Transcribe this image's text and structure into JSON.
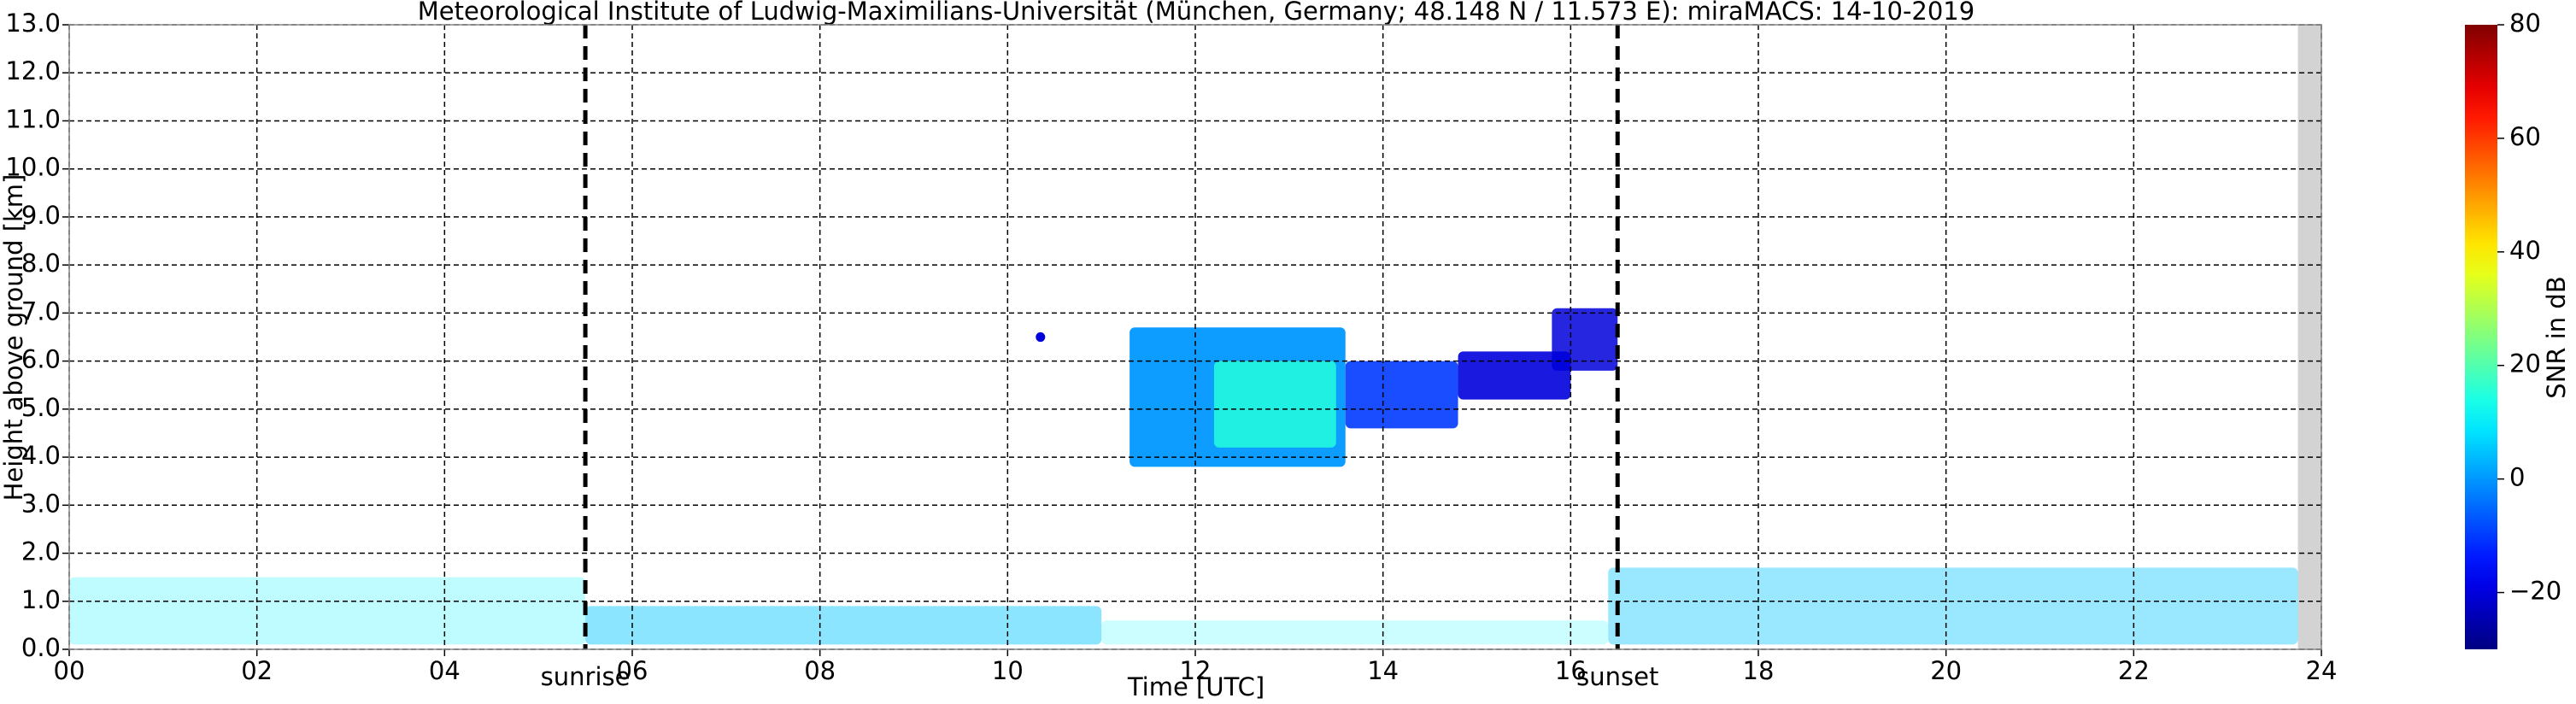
{
  "chart_data": {
    "type": "time-height",
    "title": "Meteorological Institute of Ludwig-Maximilians-Universität (München, Germany; 48.148 N / 11.573 E):    miraMACS: 14-10-2019",
    "x_label": "Time [UTC]",
    "y_label": "Height above ground [km]",
    "xlim": [
      0,
      24
    ],
    "ylim": [
      0,
      13
    ],
    "xticks": [
      {
        "value": 0,
        "label": "00"
      },
      {
        "value": 2,
        "label": "02"
      },
      {
        "value": 4,
        "label": "04"
      },
      {
        "value": 6,
        "label": "06"
      },
      {
        "value": 8,
        "label": "08"
      },
      {
        "value": 10,
        "label": "10"
      },
      {
        "value": 12,
        "label": "12"
      },
      {
        "value": 14,
        "label": "14"
      },
      {
        "value": 16,
        "label": "16"
      },
      {
        "value": 18,
        "label": "18"
      },
      {
        "value": 20,
        "label": "20"
      },
      {
        "value": 22,
        "label": "22"
      },
      {
        "value": 24,
        "label": "24"
      }
    ],
    "yticks": [
      {
        "value": 0,
        "label": "0.0"
      },
      {
        "value": 1,
        "label": "1.0"
      },
      {
        "value": 2,
        "label": "2.0"
      },
      {
        "value": 3,
        "label": "3.0"
      },
      {
        "value": 4,
        "label": "4.0"
      },
      {
        "value": 5,
        "label": "5.0"
      },
      {
        "value": 6,
        "label": "6.0"
      },
      {
        "value": 7,
        "label": "7.0"
      },
      {
        "value": 8,
        "label": "8.0"
      },
      {
        "value": 9,
        "label": "9.0"
      },
      {
        "value": 10,
        "label": "10.0"
      },
      {
        "value": 11,
        "label": "11.0"
      },
      {
        "value": 12,
        "label": "12.0"
      },
      {
        "value": 13,
        "label": "13.0"
      }
    ],
    "grid": true,
    "no_data_from": 23.75,
    "events": [
      {
        "label": "sunrise",
        "x": 5.5
      },
      {
        "label": "sunset",
        "x": 16.5
      }
    ],
    "colorbar": {
      "label": "SNR in dB",
      "colormap": "jet",
      "lim": [
        -30,
        80
      ],
      "ticks": [
        {
          "value": -20,
          "label": "−20"
        },
        0,
        20,
        40,
        60,
        80
      ]
    },
    "echoes": [
      {
        "x": [
          0,
          5.5
        ],
        "y": [
          0.1,
          1.5
        ],
        "snr": 10,
        "coverage": 0.25
      },
      {
        "x": [
          5.5,
          11
        ],
        "y": [
          0.1,
          0.9
        ],
        "snr": 5,
        "coverage": 0.45
      },
      {
        "x": [
          11,
          16.4
        ],
        "y": [
          0.1,
          0.6
        ],
        "snr": 10,
        "coverage": 0.2
      },
      {
        "x": [
          16.4,
          23.75
        ],
        "y": [
          0.1,
          1.7
        ],
        "snr": 5,
        "coverage": 0.4
      },
      {
        "x": [
          11.3,
          13.6
        ],
        "y": [
          3.8,
          6.7
        ],
        "snr": 0,
        "coverage": 0.95
      },
      {
        "x": [
          12.2,
          13.5
        ],
        "y": [
          4.2,
          6.0
        ],
        "snr": 15,
        "coverage": 0.85
      },
      {
        "x": [
          13.6,
          14.8
        ],
        "y": [
          4.6,
          6.0
        ],
        "snr": -10,
        "coverage": 0.9
      },
      {
        "x": [
          14.8,
          16.0
        ],
        "y": [
          5.2,
          6.2
        ],
        "snr": -20,
        "coverage": 0.9
      },
      {
        "x": [
          15.8,
          16.5
        ],
        "y": [
          5.8,
          7.1
        ],
        "snr": -20,
        "coverage": 0.85
      },
      {
        "x": [
          10.3,
          10.4
        ],
        "y": [
          6.4,
          6.6
        ],
        "snr": -20,
        "coverage": 1
      }
    ]
  }
}
